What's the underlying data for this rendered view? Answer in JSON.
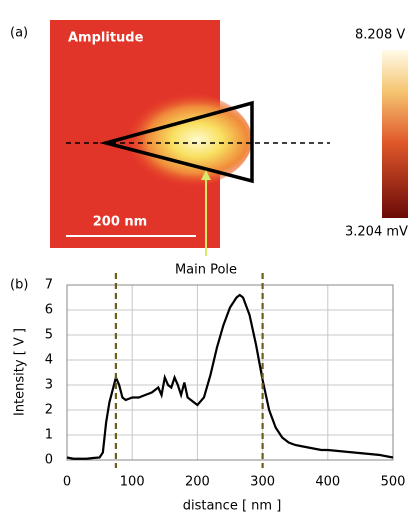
{
  "panel_a": {
    "label": "(a)",
    "title": "Amplitude",
    "scale_bar": "200 nm",
    "colorbar_max": "8.208 V",
    "colorbar_min": "3.204 mV",
    "annotation": "Main Pole"
  },
  "chart_data": {
    "type": "line",
    "panel_label": "(b)",
    "x_label": "distance [ nm ]",
    "y_label": "Intensity [ V ]",
    "x": [
      0,
      10,
      20,
      30,
      40,
      50,
      55,
      60,
      65,
      70,
      75,
      80,
      85,
      90,
      100,
      110,
      120,
      130,
      140,
      145,
      150,
      155,
      160,
      165,
      170,
      175,
      180,
      185,
      190,
      200,
      210,
      220,
      230,
      240,
      250,
      260,
      265,
      270,
      280,
      290,
      300,
      310,
      320,
      330,
      340,
      350,
      360,
      370,
      380,
      390,
      400,
      420,
      440,
      460,
      480,
      500
    ],
    "values": [
      0.1,
      0.05,
      0.05,
      0.05,
      0.08,
      0.1,
      0.3,
      1.5,
      2.3,
      2.8,
      3.3,
      3.0,
      2.5,
      2.4,
      2.5,
      2.5,
      2.6,
      2.7,
      2.9,
      2.6,
      3.3,
      3.0,
      2.9,
      3.3,
      3.0,
      2.6,
      3.1,
      2.5,
      2.4,
      2.2,
      2.5,
      3.4,
      4.5,
      5.4,
      6.1,
      6.5,
      6.6,
      6.5,
      5.8,
      4.6,
      3.2,
      2.0,
      1.3,
      0.9,
      0.7,
      0.6,
      0.55,
      0.5,
      0.45,
      0.4,
      0.4,
      0.35,
      0.3,
      0.25,
      0.2,
      0.1
    ],
    "color": "#000000",
    "vlines": [
      75,
      300
    ],
    "vline_color": "#6b5e1c",
    "xlim": [
      0,
      500
    ],
    "xticks": [
      0,
      100,
      200,
      300,
      400,
      500
    ],
    "ylim": [
      0,
      7
    ],
    "yticks": [
      0,
      1,
      2,
      3,
      4,
      5,
      6,
      7
    ],
    "grid": true
  }
}
